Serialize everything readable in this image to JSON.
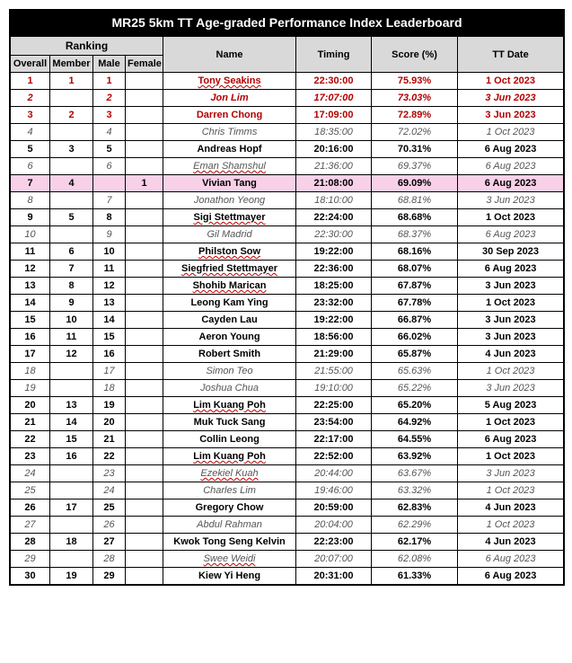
{
  "title": "MR25 5km TT Age-graded Performance Index Leaderboard",
  "headers": {
    "ranking": "Ranking",
    "overall": "Overall",
    "member": "Member",
    "male": "Male",
    "female": "Female",
    "name": "Name",
    "timing": "Timing",
    "score": "Score (%)",
    "date": "TT Date"
  },
  "rows": [
    {
      "overall": "1",
      "member": "1",
      "male": "1",
      "female": "",
      "name": "Tony Seakins",
      "timing": "22:30:00",
      "score": "75.93%",
      "date": "1 Oct 2023",
      "style": "red",
      "sq": [
        "name"
      ]
    },
    {
      "overall": "2",
      "member": "",
      "male": "2",
      "female": "",
      "name": "Jon Lim",
      "timing": "17:07:00",
      "score": "73.03%",
      "date": "3 Jun 2023",
      "style": "italic-red"
    },
    {
      "overall": "3",
      "member": "2",
      "male": "3",
      "female": "",
      "name": "Darren Chong",
      "timing": "17:09:00",
      "score": "72.89%",
      "date": "3 Jun 2023",
      "style": "red"
    },
    {
      "overall": "4",
      "member": "",
      "male": "4",
      "female": "",
      "name": "Chris Timms",
      "timing": "18:35:00",
      "score": "72.02%",
      "date": "1 Oct 2023",
      "style": "italic"
    },
    {
      "overall": "5",
      "member": "3",
      "male": "5",
      "female": "",
      "name": "Andreas Hopf",
      "timing": "20:16:00",
      "score": "70.31%",
      "date": "6 Aug 2023",
      "style": "bold"
    },
    {
      "overall": "6",
      "member": "",
      "male": "6",
      "female": "",
      "name": "Eman Shamshul",
      "timing": "21:36:00",
      "score": "69.37%",
      "date": "6 Aug 2023",
      "style": "italic",
      "sq": [
        "name"
      ]
    },
    {
      "overall": "7",
      "member": "4",
      "male": "",
      "female": "1",
      "name": "Vivian Tang",
      "timing": "21:08:00",
      "score": "69.09%",
      "date": "6 Aug 2023",
      "style": "highlight"
    },
    {
      "overall": "8",
      "member": "",
      "male": "7",
      "female": "",
      "name": "Jonathon Yeong",
      "timing": "18:10:00",
      "score": "68.81%",
      "date": "3 Jun 2023",
      "style": "italic"
    },
    {
      "overall": "9",
      "member": "5",
      "male": "8",
      "female": "",
      "name": "Sigi Stettmayer",
      "timing": "22:24:00",
      "score": "68.68%",
      "date": "1 Oct 2023",
      "style": "bold",
      "sq": [
        "name"
      ]
    },
    {
      "overall": "10",
      "member": "",
      "male": "9",
      "female": "",
      "name": "Gil Madrid",
      "timing": "22:30:00",
      "score": "68.37%",
      "date": "6 Aug 2023",
      "style": "italic"
    },
    {
      "overall": "11",
      "member": "6",
      "male": "10",
      "female": "",
      "name": "Philston Sow",
      "timing": "19:22:00",
      "score": "68.16%",
      "date": "30 Sep 2023",
      "style": "bold",
      "sq": [
        "name"
      ]
    },
    {
      "overall": "12",
      "member": "7",
      "male": "11",
      "female": "",
      "name": "Siegfried Stettmayer",
      "timing": "22:36:00",
      "score": "68.07%",
      "date": "6 Aug 2023",
      "style": "bold",
      "sq": [
        "name"
      ]
    },
    {
      "overall": "13",
      "member": "8",
      "male": "12",
      "female": "",
      "name": "Shohib Marican",
      "timing": "18:25:00",
      "score": "67.87%",
      "date": "3 Jun 2023",
      "style": "bold",
      "sq": [
        "name"
      ]
    },
    {
      "overall": "14",
      "member": "9",
      "male": "13",
      "female": "",
      "name": "Leong Kam Ying",
      "timing": "23:32:00",
      "score": "67.78%",
      "date": "1 Oct 2023",
      "style": "bold"
    },
    {
      "overall": "15",
      "member": "10",
      "male": "14",
      "female": "",
      "name": "Cayden Lau",
      "timing": "19:22:00",
      "score": "66.87%",
      "date": "3 Jun 2023",
      "style": "bold"
    },
    {
      "overall": "16",
      "member": "11",
      "male": "15",
      "female": "",
      "name": "Aeron Young",
      "timing": "18:56:00",
      "score": "66.02%",
      "date": "3 Jun 2023",
      "style": "bold"
    },
    {
      "overall": "17",
      "member": "12",
      "male": "16",
      "female": "",
      "name": "Robert Smith",
      "timing": "21:29:00",
      "score": "65.87%",
      "date": "4 Jun 2023",
      "style": "bold"
    },
    {
      "overall": "18",
      "member": "",
      "male": "17",
      "female": "",
      "name": "Simon Teo",
      "timing": "21:55:00",
      "score": "65.63%",
      "date": "1 Oct 2023",
      "style": "italic"
    },
    {
      "overall": "19",
      "member": "",
      "male": "18",
      "female": "",
      "name": "Joshua Chua",
      "timing": "19:10:00",
      "score": "65.22%",
      "date": "3 Jun 2023",
      "style": "italic"
    },
    {
      "overall": "20",
      "member": "13",
      "male": "19",
      "female": "",
      "name": "Lim Kuang Poh",
      "timing": "22:25:00",
      "score": "65.20%",
      "date": "5 Aug 2023",
      "style": "bold",
      "sq": [
        "name"
      ]
    },
    {
      "overall": "21",
      "member": "14",
      "male": "20",
      "female": "",
      "name": "Muk Tuck Sang",
      "timing": "23:54:00",
      "score": "64.92%",
      "date": "1 Oct 2023",
      "style": "bold"
    },
    {
      "overall": "22",
      "member": "15",
      "male": "21",
      "female": "",
      "name": "Collin Leong",
      "timing": "22:17:00",
      "score": "64.55%",
      "date": "6 Aug 2023",
      "style": "bold"
    },
    {
      "overall": "23",
      "member": "16",
      "male": "22",
      "female": "",
      "name": "Lim Kuang Poh",
      "timing": "22:52:00",
      "score": "63.92%",
      "date": "1 Oct 2023",
      "style": "bold",
      "sq": [
        "name"
      ]
    },
    {
      "overall": "24",
      "member": "",
      "male": "23",
      "female": "",
      "name": "Ezekiel Kuah",
      "timing": "20:44:00",
      "score": "63.67%",
      "date": "3 Jun 2023",
      "style": "italic",
      "sq": [
        "name"
      ]
    },
    {
      "overall": "25",
      "member": "",
      "male": "24",
      "female": "",
      "name": "Charles Lim",
      "timing": "19:46:00",
      "score": "63.32%",
      "date": "1 Oct 2023",
      "style": "italic"
    },
    {
      "overall": "26",
      "member": "17",
      "male": "25",
      "female": "",
      "name": "Gregory Chow",
      "timing": "20:59:00",
      "score": "62.83%",
      "date": "4 Jun 2023",
      "style": "bold"
    },
    {
      "overall": "27",
      "member": "",
      "male": "26",
      "female": "",
      "name": "Abdul Rahman",
      "timing": "20:04:00",
      "score": "62.29%",
      "date": "1 Oct 2023",
      "style": "italic"
    },
    {
      "overall": "28",
      "member": "18",
      "male": "27",
      "female": "",
      "name": "Kwok Tong Seng Kelvin",
      "timing": "22:23:00",
      "score": "62.17%",
      "date": "4 Jun 2023",
      "style": "bold"
    },
    {
      "overall": "29",
      "member": "",
      "male": "28",
      "female": "",
      "name": "Swee Weidi",
      "timing": "20:07:00",
      "score": "62.08%",
      "date": "6 Aug 2023",
      "style": "italic",
      "sq": [
        "name"
      ]
    },
    {
      "overall": "30",
      "member": "19",
      "male": "29",
      "female": "",
      "name": "Kiew Yi Heng",
      "timing": "20:31:00",
      "score": "61.33%",
      "date": "6 Aug 2023",
      "style": "bold"
    }
  ],
  "colors": {
    "header_bg": "#d9d9d9",
    "title_bg": "#000000",
    "title_fg": "#ffffff",
    "highlight_bg": "#f8d0e8",
    "red_text": "#b30000",
    "italic_text": "#555555",
    "border": "#000000"
  }
}
